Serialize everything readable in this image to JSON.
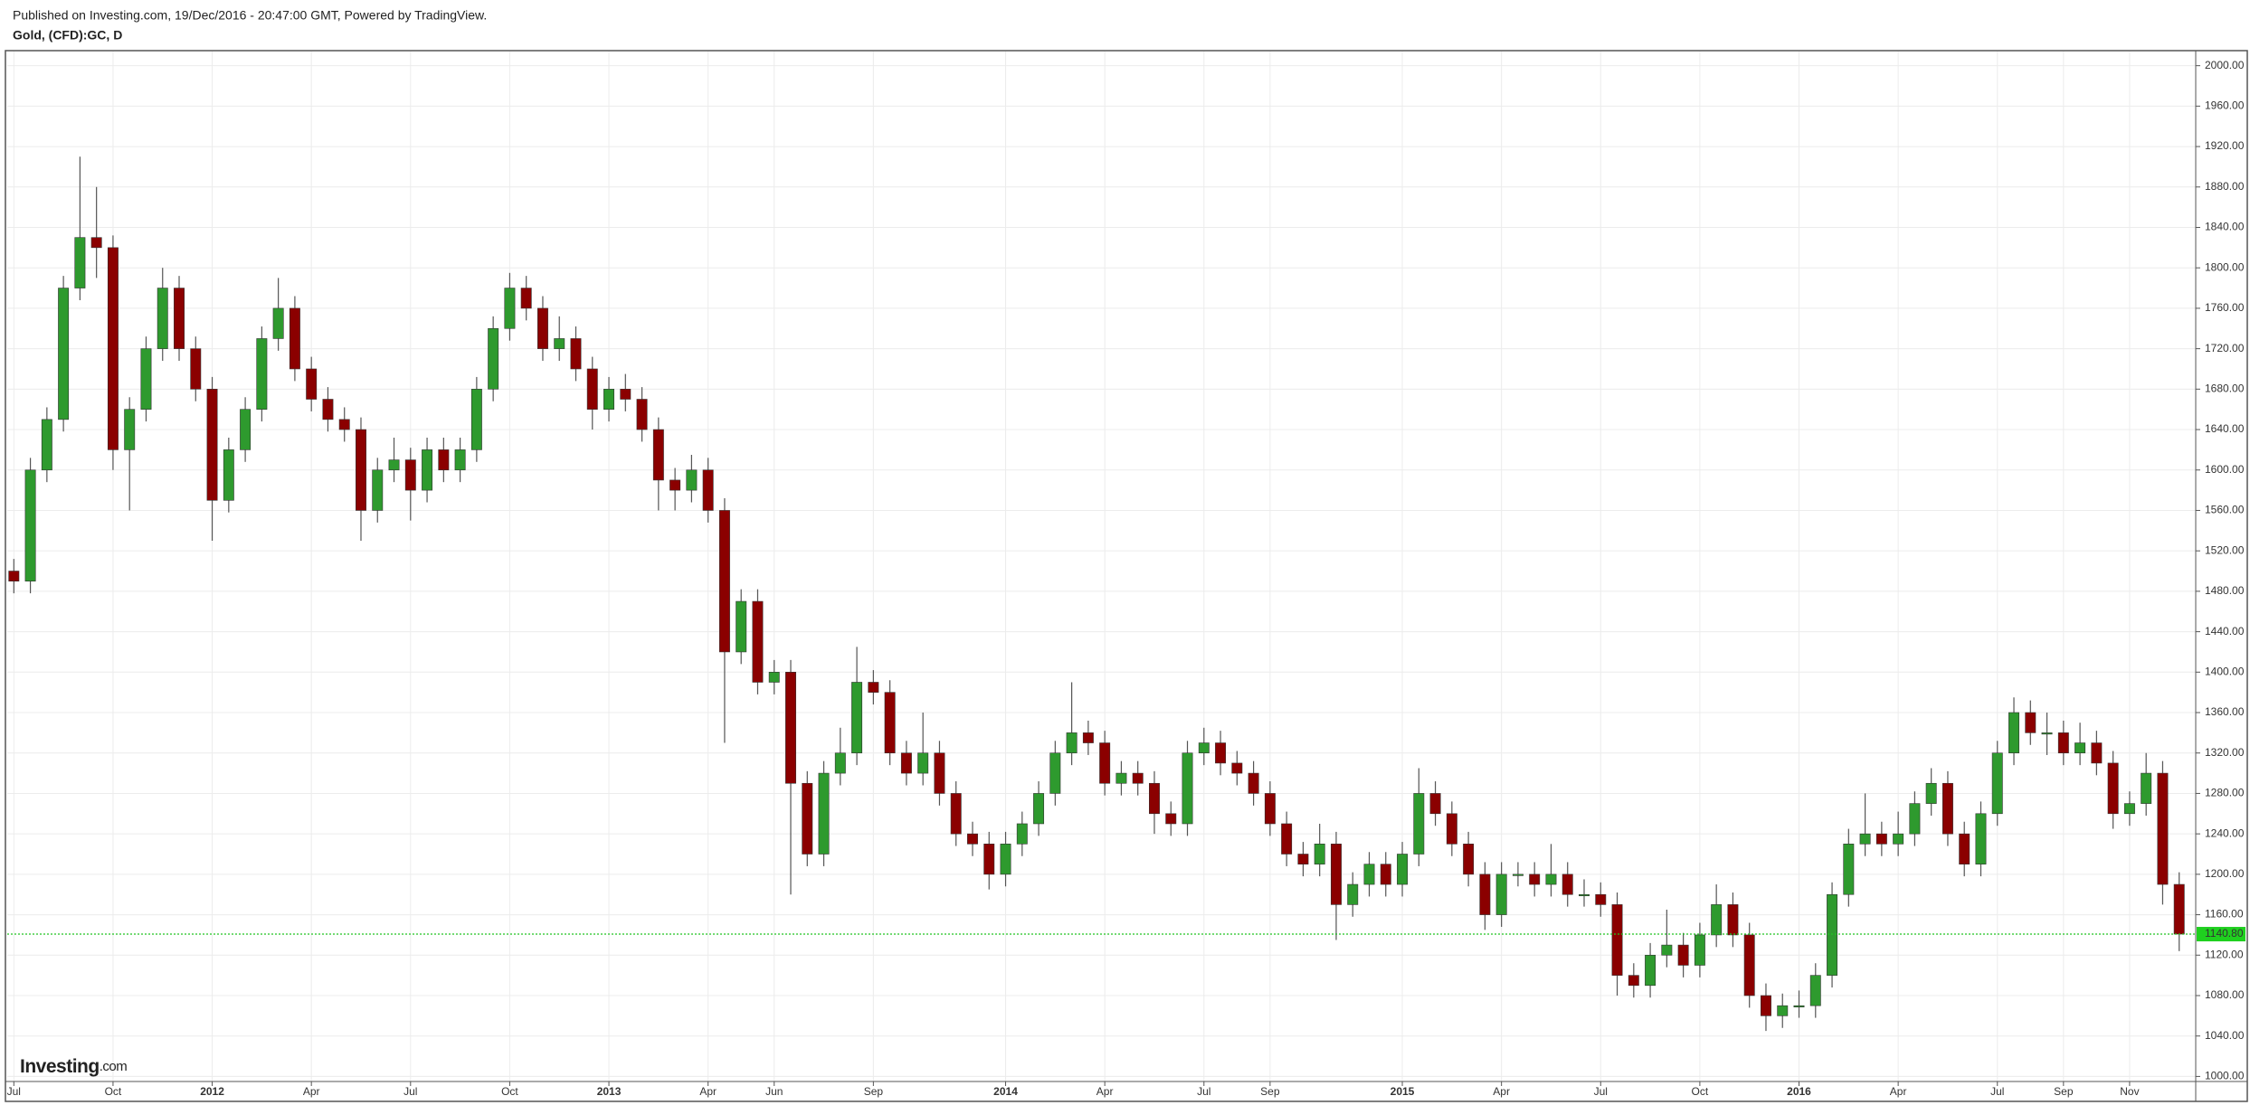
{
  "header": {
    "published": "Published on Investing.com, 19/Dec/2016 - 20:47:00 GMT, Powered by TradingView.",
    "symbol": "Gold, (CFD):GC, D"
  },
  "logo": {
    "brand": "Investing",
    "suffix": ".com"
  },
  "chart_data": {
    "type": "candlestick",
    "up_color": "#2e9a2e",
    "down_color": "#8b0000",
    "grid": true,
    "xlim": [
      -0.2,
      66
    ],
    "ylim": [
      995,
      2014
    ],
    "xticks": [
      {
        "value": 0,
        "label": "Jul"
      },
      {
        "value": 3,
        "label": "Oct"
      },
      {
        "value": 6,
        "label": "2012"
      },
      {
        "value": 9,
        "label": "Apr"
      },
      {
        "value": 12,
        "label": "Jul"
      },
      {
        "value": 15,
        "label": "Oct"
      },
      {
        "value": 18,
        "label": "2013"
      },
      {
        "value": 21,
        "label": "Apr"
      },
      {
        "value": 23,
        "label": "Jun"
      },
      {
        "value": 26,
        "label": "Sep"
      },
      {
        "value": 30,
        "label": "2014"
      },
      {
        "value": 33,
        "label": "Apr"
      },
      {
        "value": 36,
        "label": "Jul"
      },
      {
        "value": 38,
        "label": "Sep"
      },
      {
        "value": 42,
        "label": "2015"
      },
      {
        "value": 45,
        "label": "Apr"
      },
      {
        "value": 48,
        "label": "Jul"
      },
      {
        "value": 51,
        "label": "Oct"
      },
      {
        "value": 54,
        "label": "2016"
      },
      {
        "value": 57,
        "label": "Apr"
      },
      {
        "value": 60,
        "label": "Jul"
      },
      {
        "value": 62,
        "label": "Sep"
      },
      {
        "value": 64,
        "label": "Nov"
      }
    ],
    "yticks": [
      {
        "value": 1000,
        "label": "1000.00"
      },
      {
        "value": 1040,
        "label": "1040.00"
      },
      {
        "value": 1080,
        "label": "1080.00"
      },
      {
        "value": 1120,
        "label": "1120.00"
      },
      {
        "value": 1160,
        "label": "1160.00"
      },
      {
        "value": 1200,
        "label": "1200.00"
      },
      {
        "value": 1240,
        "label": "1240.00"
      },
      {
        "value": 1280,
        "label": "1280.00"
      },
      {
        "value": 1320,
        "label": "1320.00"
      },
      {
        "value": 1360,
        "label": "1360.00"
      },
      {
        "value": 1400,
        "label": "1400.00"
      },
      {
        "value": 1440,
        "label": "1440.00"
      },
      {
        "value": 1480,
        "label": "1480.00"
      },
      {
        "value": 1520,
        "label": "1520.00"
      },
      {
        "value": 1560,
        "label": "1560.00"
      },
      {
        "value": 1600,
        "label": "1600.00"
      },
      {
        "value": 1640,
        "label": "1640.00"
      },
      {
        "value": 1680,
        "label": "1680.00"
      },
      {
        "value": 1720,
        "label": "1720.00"
      },
      {
        "value": 1760,
        "label": "1760.00"
      },
      {
        "value": 1800,
        "label": "1800.00"
      },
      {
        "value": 1840,
        "label": "1840.00"
      },
      {
        "value": 1880,
        "label": "1880.00"
      },
      {
        "value": 1920,
        "label": "1920.00"
      },
      {
        "value": 1960,
        "label": "1960.00"
      },
      {
        "value": 2000,
        "label": "2000.00"
      }
    ],
    "last_price": {
      "value": 1140.8,
      "label": "1140.80"
    },
    "x": [
      0,
      0.5,
      1,
      1.5,
      2,
      2.5,
      3,
      3.5,
      4,
      4.5,
      5,
      5.5,
      6,
      6.5,
      7,
      7.5,
      8,
      8.5,
      9,
      9.5,
      10,
      10.5,
      11,
      11.5,
      12,
      12.5,
      13,
      13.5,
      14,
      14.5,
      15,
      15.5,
      16,
      16.5,
      17,
      17.5,
      18,
      18.5,
      19,
      19.5,
      20,
      20.5,
      21,
      21.5,
      22,
      22.5,
      23,
      23.5,
      24,
      24.5,
      25,
      25.5,
      26,
      26.5,
      27,
      27.5,
      28,
      28.5,
      29,
      29.5,
      30,
      30.5,
      31,
      31.5,
      32,
      32.5,
      33,
      33.5,
      34,
      34.5,
      35,
      35.5,
      36,
      36.5,
      37,
      37.5,
      38,
      38.5,
      39,
      39.5,
      40,
      40.5,
      41,
      41.5,
      42,
      42.5,
      43,
      43.5,
      44,
      44.5,
      45,
      45.5,
      46,
      46.5,
      47,
      47.5,
      48,
      48.5,
      49,
      49.5,
      50,
      50.5,
      51,
      51.5,
      52,
      52.5,
      53,
      53.5,
      54,
      54.5,
      55,
      55.5,
      56,
      56.5,
      57,
      57.5,
      58,
      58.5,
      59,
      59.5,
      60,
      60.5,
      61,
      61.5,
      62,
      62.5,
      63,
      63.5,
      64,
      64.5,
      65,
      65.5
    ],
    "candles": [
      [
        1500,
        1512,
        1478,
        1490
      ],
      [
        1490,
        1612,
        1478,
        1600
      ],
      [
        1600,
        1662,
        1588,
        1650
      ],
      [
        1650,
        1792,
        1638,
        1780
      ],
      [
        1780,
        1910,
        1768,
        1830
      ],
      [
        1830,
        1880,
        1790,
        1820
      ],
      [
        1820,
        1832,
        1600,
        1620
      ],
      [
        1620,
        1672,
        1560,
        1660
      ],
      [
        1660,
        1732,
        1648,
        1720
      ],
      [
        1720,
        1800,
        1708,
        1780
      ],
      [
        1780,
        1792,
        1708,
        1720
      ],
      [
        1720,
        1732,
        1668,
        1680
      ],
      [
        1680,
        1692,
        1530,
        1570
      ],
      [
        1570,
        1632,
        1558,
        1620
      ],
      [
        1620,
        1672,
        1608,
        1660
      ],
      [
        1660,
        1742,
        1648,
        1730
      ],
      [
        1730,
        1790,
        1718,
        1760
      ],
      [
        1760,
        1772,
        1688,
        1700
      ],
      [
        1700,
        1712,
        1658,
        1670
      ],
      [
        1670,
        1682,
        1638,
        1650
      ],
      [
        1650,
        1662,
        1628,
        1640
      ],
      [
        1640,
        1652,
        1530,
        1560
      ],
      [
        1560,
        1612,
        1548,
        1600
      ],
      [
        1600,
        1632,
        1588,
        1610
      ],
      [
        1610,
        1622,
        1550,
        1580
      ],
      [
        1580,
        1632,
        1568,
        1620
      ],
      [
        1620,
        1632,
        1588,
        1600
      ],
      [
        1600,
        1632,
        1588,
        1620
      ],
      [
        1620,
        1692,
        1608,
        1680
      ],
      [
        1680,
        1752,
        1668,
        1740
      ],
      [
        1740,
        1795,
        1728,
        1780
      ],
      [
        1780,
        1792,
        1748,
        1760
      ],
      [
        1760,
        1772,
        1708,
        1720
      ],
      [
        1720,
        1752,
        1708,
        1730
      ],
      [
        1730,
        1742,
        1688,
        1700
      ],
      [
        1700,
        1712,
        1640,
        1660
      ],
      [
        1660,
        1692,
        1648,
        1680
      ],
      [
        1680,
        1695,
        1658,
        1670
      ],
      [
        1670,
        1682,
        1628,
        1640
      ],
      [
        1640,
        1652,
        1560,
        1590
      ],
      [
        1590,
        1602,
        1560,
        1580
      ],
      [
        1580,
        1615,
        1568,
        1600
      ],
      [
        1600,
        1612,
        1548,
        1560
      ],
      [
        1560,
        1572,
        1330,
        1420
      ],
      [
        1420,
        1482,
        1408,
        1470
      ],
      [
        1470,
        1482,
        1378,
        1390
      ],
      [
        1390,
        1412,
        1378,
        1400
      ],
      [
        1400,
        1412,
        1180,
        1290
      ],
      [
        1290,
        1302,
        1208,
        1220
      ],
      [
        1220,
        1312,
        1208,
        1300
      ],
      [
        1300,
        1345,
        1288,
        1320
      ],
      [
        1320,
        1425,
        1308,
        1390
      ],
      [
        1390,
        1402,
        1368,
        1380
      ],
      [
        1380,
        1392,
        1308,
        1320
      ],
      [
        1320,
        1332,
        1288,
        1300
      ],
      [
        1300,
        1360,
        1288,
        1320
      ],
      [
        1320,
        1332,
        1268,
        1280
      ],
      [
        1280,
        1292,
        1228,
        1240
      ],
      [
        1240,
        1252,
        1218,
        1230
      ],
      [
        1230,
        1242,
        1185,
        1200
      ],
      [
        1200,
        1242,
        1188,
        1230
      ],
      [
        1230,
        1262,
        1218,
        1250
      ],
      [
        1250,
        1292,
        1238,
        1280
      ],
      [
        1280,
        1332,
        1268,
        1320
      ],
      [
        1320,
        1390,
        1308,
        1340
      ],
      [
        1340,
        1352,
        1318,
        1330
      ],
      [
        1330,
        1342,
        1278,
        1290
      ],
      [
        1290,
        1312,
        1278,
        1300
      ],
      [
        1300,
        1312,
        1278,
        1290
      ],
      [
        1290,
        1302,
        1240,
        1260
      ],
      [
        1260,
        1272,
        1238,
        1250
      ],
      [
        1250,
        1332,
        1238,
        1320
      ],
      [
        1320,
        1345,
        1308,
        1330
      ],
      [
        1330,
        1342,
        1298,
        1310
      ],
      [
        1310,
        1322,
        1288,
        1300
      ],
      [
        1300,
        1312,
        1268,
        1280
      ],
      [
        1280,
        1292,
        1238,
        1250
      ],
      [
        1250,
        1262,
        1208,
        1220
      ],
      [
        1220,
        1232,
        1198,
        1210
      ],
      [
        1210,
        1250,
        1198,
        1230
      ],
      [
        1230,
        1242,
        1135,
        1170
      ],
      [
        1170,
        1202,
        1158,
        1190
      ],
      [
        1190,
        1222,
        1178,
        1210
      ],
      [
        1210,
        1222,
        1178,
        1190
      ],
      [
        1190,
        1232,
        1178,
        1220
      ],
      [
        1220,
        1305,
        1208,
        1280
      ],
      [
        1280,
        1292,
        1248,
        1260
      ],
      [
        1260,
        1272,
        1218,
        1230
      ],
      [
        1230,
        1242,
        1188,
        1200
      ],
      [
        1200,
        1212,
        1145,
        1160
      ],
      [
        1160,
        1212,
        1148,
        1200
      ],
      [
        1200,
        1212,
        1188,
        1200
      ],
      [
        1200,
        1212,
        1178,
        1190
      ],
      [
        1190,
        1230,
        1178,
        1200
      ],
      [
        1200,
        1212,
        1168,
        1180
      ],
      [
        1180,
        1195,
        1168,
        1180
      ],
      [
        1180,
        1192,
        1158,
        1170
      ],
      [
        1170,
        1182,
        1080,
        1100
      ],
      [
        1100,
        1112,
        1078,
        1090
      ],
      [
        1090,
        1132,
        1078,
        1120
      ],
      [
        1120,
        1165,
        1108,
        1130
      ],
      [
        1130,
        1142,
        1098,
        1110
      ],
      [
        1110,
        1152,
        1098,
        1140
      ],
      [
        1140,
        1190,
        1128,
        1170
      ],
      [
        1170,
        1182,
        1128,
        1140
      ],
      [
        1140,
        1152,
        1068,
        1080
      ],
      [
        1080,
        1092,
        1045,
        1060
      ],
      [
        1060,
        1082,
        1048,
        1070
      ],
      [
        1070,
        1085,
        1058,
        1070
      ],
      [
        1070,
        1112,
        1058,
        1100
      ],
      [
        1100,
        1192,
        1088,
        1180
      ],
      [
        1180,
        1245,
        1168,
        1230
      ],
      [
        1230,
        1280,
        1218,
        1240
      ],
      [
        1240,
        1252,
        1218,
        1230
      ],
      [
        1230,
        1262,
        1218,
        1240
      ],
      [
        1240,
        1282,
        1228,
        1270
      ],
      [
        1270,
        1305,
        1258,
        1290
      ],
      [
        1290,
        1302,
        1228,
        1240
      ],
      [
        1240,
        1252,
        1198,
        1210
      ],
      [
        1210,
        1272,
        1198,
        1260
      ],
      [
        1260,
        1332,
        1248,
        1320
      ],
      [
        1320,
        1375,
        1308,
        1360
      ],
      [
        1360,
        1372,
        1328,
        1340
      ],
      [
        1340,
        1360,
        1318,
        1340
      ],
      [
        1340,
        1352,
        1308,
        1320
      ],
      [
        1320,
        1350,
        1308,
        1330
      ],
      [
        1330,
        1342,
        1298,
        1310
      ],
      [
        1310,
        1322,
        1245,
        1260
      ],
      [
        1260,
        1282,
        1248,
        1270
      ],
      [
        1270,
        1320,
        1258,
        1300
      ],
      [
        1300,
        1312,
        1170,
        1190
      ],
      [
        1190,
        1202,
        1124,
        1140.8
      ]
    ]
  }
}
